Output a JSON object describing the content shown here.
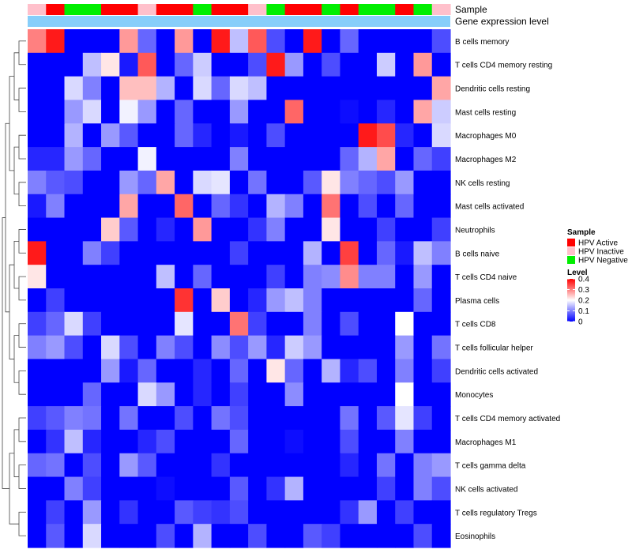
{
  "chart_data": {
    "type": "heatmap",
    "annotation_labels": [
      "Sample",
      "Gene expression level"
    ],
    "rows": [
      "B cells memory",
      "T cells CD4 memory resting",
      "Dendritic cells resting",
      "Mast cells resting",
      "Macrophages M0",
      "Macrophages M2",
      "NK cells resting",
      "Mast cells activated",
      "Neutrophils",
      "B cells naive",
      "T cells CD4 naive",
      "Plasma cells",
      "T cells CD8",
      "T cells follicular helper",
      "Dendritic cells activated",
      "Monocytes",
      "T cells CD4 memory activated",
      "Macrophages M1",
      "T cells gamma delta",
      "NK cells activated",
      "T cells regulatory  Tregs",
      "Eosinophils"
    ],
    "sample_groups": [
      "HPV Inactive",
      "HPV Active",
      "HPV Negative",
      "HPV Negative",
      "HPV Active",
      "HPV Active",
      "HPV Inactive",
      "HPV Active",
      "HPV Active",
      "HPV Negative",
      "HPV Active",
      "HPV Active",
      "HPV Inactive",
      "HPV Negative",
      "HPV Active",
      "HPV Active",
      "HPV Negative",
      "HPV Active",
      "HPV Negative",
      "HPV Negative",
      "HPV Active",
      "HPV Negative",
      "HPV Inactive"
    ],
    "group_colors": {
      "HPV Active": "#FF0000",
      "HPV Inactive": "#FFC0CB",
      "HPV Negative": "#00EE00"
    },
    "legend_sample": {
      "title": "Sample",
      "items": [
        "HPV Active",
        "HPV Inactive",
        "HPV Negative"
      ]
    },
    "legend_level": {
      "title": "Level",
      "ticks": [
        0.4,
        0.3,
        0.2,
        0.1,
        0
      ],
      "tick_labels": [
        "0.4",
        "0.3",
        "0.2",
        "0.1",
        "0"
      ],
      "range": [
        0,
        0.4
      ]
    },
    "color_scale": {
      "low": "#0000FF",
      "mid": "#FFFFFF",
      "high": "#FF0000",
      "mid_value": 0.2
    },
    "values": [
      [
        0.3,
        0.38,
        0.0,
        0.0,
        0.0,
        0.28,
        0.08,
        0.0,
        0.28,
        0.0,
        0.38,
        0.15,
        0.33,
        0.06,
        0.0,
        0.38,
        0.0,
        0.08,
        0.0,
        0.0,
        0.0,
        0.0,
        0.06
      ],
      [
        0.0,
        0.0,
        0.0,
        0.15,
        0.22,
        0.02,
        0.33,
        0.0,
        0.08,
        0.16,
        0.0,
        0.0,
        0.06,
        0.38,
        0.12,
        0.0,
        0.06,
        0.0,
        0.0,
        0.16,
        0.0,
        0.28,
        0.0
      ],
      [
        0.0,
        0.0,
        0.17,
        0.1,
        0.0,
        0.25,
        0.25,
        0.14,
        0.0,
        0.17,
        0.08,
        0.17,
        0.15,
        0.0,
        0.0,
        0.0,
        0.0,
        0.0,
        0.0,
        0.0,
        0.0,
        0.0,
        0.27
      ],
      [
        0.0,
        0.0,
        0.12,
        0.17,
        0.0,
        0.19,
        0.12,
        0.0,
        0.08,
        0.0,
        0.0,
        0.12,
        0.0,
        0.0,
        0.32,
        0.0,
        0.0,
        0.01,
        0.0,
        0.03,
        0.0,
        0.27,
        0.16
      ],
      [
        0.0,
        0.0,
        0.14,
        0.0,
        0.12,
        0.07,
        0.0,
        0.0,
        0.08,
        0.03,
        0.0,
        0.02,
        0.0,
        0.06,
        0.0,
        0.0,
        0.0,
        0.0,
        0.38,
        0.34,
        0.03,
        0.0,
        0.17
      ],
      [
        0.03,
        0.03,
        0.12,
        0.08,
        0.0,
        0.0,
        0.19,
        0.0,
        0.0,
        0.0,
        0.0,
        0.1,
        0.0,
        0.0,
        0.0,
        0.0,
        0.0,
        0.08,
        0.14,
        0.27,
        0.0,
        0.08,
        0.05
      ],
      [
        0.1,
        0.07,
        0.06,
        0.0,
        0.0,
        0.12,
        0.08,
        0.27,
        0.0,
        0.17,
        0.18,
        0.0,
        0.09,
        0.0,
        0.0,
        0.07,
        0.22,
        0.1,
        0.08,
        0.06,
        0.12,
        0.0,
        0.0
      ],
      [
        0.02,
        0.1,
        0.0,
        0.0,
        0.0,
        0.27,
        0.0,
        0.0,
        0.32,
        0.0,
        0.08,
        0.04,
        0.0,
        0.14,
        0.1,
        0.0,
        0.31,
        0.0,
        0.06,
        0.0,
        0.08,
        0.0,
        0.0
      ],
      [
        0.0,
        0.0,
        0.0,
        0.0,
        0.24,
        0.07,
        0.0,
        0.03,
        0.0,
        0.28,
        0.0,
        0.0,
        0.04,
        0.1,
        0.0,
        0.0,
        0.22,
        0.0,
        0.0,
        0.05,
        0.0,
        0.0,
        0.05
      ],
      [
        0.38,
        0.0,
        0.0,
        0.1,
        0.05,
        0.0,
        0.0,
        0.0,
        0.0,
        0.0,
        0.0,
        0.05,
        0.0,
        0.0,
        0.0,
        0.14,
        0.0,
        0.35,
        0.0,
        0.08,
        0.02,
        0.15,
        0.1
      ],
      [
        0.22,
        0.0,
        0.0,
        0.0,
        0.0,
        0.0,
        0.0,
        0.15,
        0.0,
        0.08,
        0.0,
        0.0,
        0.0,
        0.05,
        0.0,
        0.1,
        0.11,
        0.29,
        0.1,
        0.1,
        0.0,
        0.12,
        0.0
      ],
      [
        0.0,
        0.05,
        0.0,
        0.0,
        0.0,
        0.0,
        0.0,
        0.0,
        0.36,
        0.0,
        0.24,
        0.0,
        0.03,
        0.12,
        0.15,
        0.1,
        0.0,
        0.0,
        0.0,
        0.0,
        0.0,
        0.08,
        0.0
      ],
      [
        0.05,
        0.08,
        0.17,
        0.05,
        0.0,
        0.0,
        0.0,
        0.0,
        0.18,
        0.0,
        0.0,
        0.31,
        0.05,
        0.0,
        0.0,
        0.1,
        0.0,
        0.06,
        0.0,
        0.0,
        0.2,
        0.0,
        0.0
      ],
      [
        0.1,
        0.12,
        0.06,
        0.0,
        0.17,
        0.06,
        0.0,
        0.1,
        0.06,
        0.0,
        0.11,
        0.06,
        0.12,
        0.03,
        0.16,
        0.12,
        0.0,
        0.0,
        0.0,
        0.0,
        0.12,
        0.0,
        0.09
      ],
      [
        0.0,
        0.0,
        0.0,
        0.0,
        0.12,
        0.02,
        0.08,
        0.0,
        0.0,
        0.03,
        0.0,
        0.08,
        0.0,
        0.22,
        0.08,
        0.0,
        0.14,
        0.03,
        0.06,
        0.0,
        0.1,
        0.0,
        0.05
      ],
      [
        0.0,
        0.0,
        0.0,
        0.08,
        0.0,
        0.0,
        0.17,
        0.12,
        0.0,
        0.03,
        0.0,
        0.05,
        0.0,
        0.0,
        0.11,
        0.0,
        0.0,
        0.0,
        0.0,
        0.0,
        0.2,
        0.0,
        0.0
      ],
      [
        0.05,
        0.07,
        0.1,
        0.09,
        0.0,
        0.09,
        0.0,
        0.0,
        0.06,
        0.0,
        0.09,
        0.06,
        0.0,
        0.0,
        0.0,
        0.0,
        0.0,
        0.09,
        0.0,
        0.07,
        0.18,
        0.05,
        0.0
      ],
      [
        0.0,
        0.04,
        0.15,
        0.03,
        0.0,
        0.0,
        0.03,
        0.06,
        0.0,
        0.0,
        0.0,
        0.08,
        0.0,
        0.0,
        0.01,
        0.0,
        0.0,
        0.06,
        0.0,
        0.0,
        0.1,
        0.0,
        0.0
      ],
      [
        0.08,
        0.09,
        0.0,
        0.06,
        0.0,
        0.12,
        0.07,
        0.0,
        0.0,
        0.0,
        0.04,
        0.0,
        0.0,
        0.0,
        0.0,
        0.0,
        0.0,
        0.03,
        0.0,
        0.09,
        0.0,
        0.1,
        0.12
      ],
      [
        0.0,
        0.0,
        0.1,
        0.05,
        0.0,
        0.0,
        0.0,
        0.01,
        0.0,
        0.0,
        0.0,
        0.07,
        0.0,
        0.04,
        0.14,
        0.0,
        0.0,
        0.0,
        0.0,
        0.05,
        0.0,
        0.1,
        0.06
      ],
      [
        0.0,
        0.05,
        0.0,
        0.12,
        0.0,
        0.04,
        0.0,
        0.0,
        0.07,
        0.05,
        0.04,
        0.06,
        0.0,
        0.0,
        0.0,
        0.0,
        0.0,
        0.04,
        0.12,
        0.0,
        0.05,
        0.0,
        0.0
      ],
      [
        0.0,
        0.07,
        0.0,
        0.17,
        0.0,
        0.0,
        0.0,
        0.06,
        0.0,
        0.14,
        0.0,
        0.0,
        0.06,
        0.0,
        0.0,
        0.07,
        0.05,
        0.0,
        0.0,
        0.0,
        0.0,
        0.06,
        0.0
      ]
    ]
  }
}
